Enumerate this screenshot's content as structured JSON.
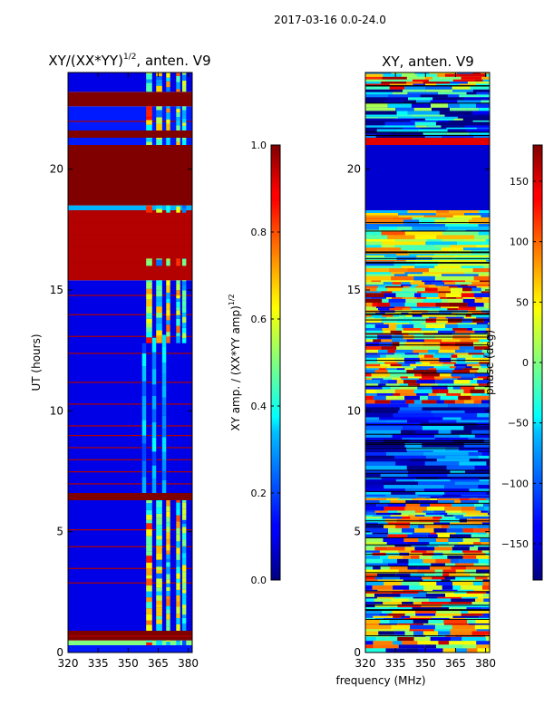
{
  "figure_title": "2017-03-16 0.0-24.0",
  "shared_xlabel": "frequency (MHz)",
  "chart_data": [
    {
      "type": "heatmap",
      "title": "XY/(XX*YY)^{1/2}, anten. V9",
      "title_main": "XY/(XX*YY)",
      "title_sup": "1/2",
      "title_tail": ", anten. V9",
      "ylabel": "UT (hours)",
      "xlim": [
        320,
        382
      ],
      "ylim": [
        0,
        24
      ],
      "xticks": [
        320,
        335,
        350,
        365,
        380
      ],
      "yticks": [
        0,
        5,
        10,
        15,
        20
      ],
      "colorbar": {
        "label_main": "XY amp. / (XX*YY amp)",
        "label_sup": "1/2",
        "range": [
          0.0,
          1.0
        ],
        "ticks": [
          "0.0",
          "0.2",
          "0.4",
          "0.6",
          "0.8",
          "1.0"
        ],
        "tick_values": [
          0.0,
          0.2,
          0.4,
          0.6,
          0.8,
          1.0
        ]
      },
      "colormap": "jet",
      "colormap_stops": [
        "#00007f",
        "#0000ff",
        "#007fff",
        "#00ffff",
        "#7fff7f",
        "#ffff00",
        "#ff7f00",
        "#ff0000",
        "#7f0000"
      ],
      "bands": [
        {
          "from": 0.0,
          "to": 0.3,
          "level": 0.15
        },
        {
          "from": 0.3,
          "to": 0.5,
          "level": 0.5
        },
        {
          "from": 0.5,
          "to": 0.9,
          "level": 1.0
        },
        {
          "from": 0.9,
          "to": 6.3,
          "level": 0.1
        },
        {
          "from": 6.3,
          "to": 6.6,
          "level": 1.0
        },
        {
          "from": 6.6,
          "to": 15.4,
          "level": 0.1
        },
        {
          "from": 15.4,
          "to": 18.3,
          "level": 0.95
        },
        {
          "from": 18.3,
          "to": 18.5,
          "level": 0.3
        },
        {
          "from": 18.5,
          "to": 21.0,
          "level": 1.0
        },
        {
          "from": 21.0,
          "to": 21.3,
          "level": 0.15
        },
        {
          "from": 21.3,
          "to": 21.6,
          "level": 1.0
        },
        {
          "from": 21.6,
          "to": 22.6,
          "level": 0.15
        },
        {
          "from": 22.6,
          "to": 23.2,
          "level": 1.0
        },
        {
          "from": 23.2,
          "to": 24.0,
          "level": 0.1
        }
      ],
      "high_columns": [
        {
          "from": 359,
          "to": 362,
          "level": 0.7
        },
        {
          "from": 364,
          "to": 367,
          "level": 0.55
        },
        {
          "from": 369,
          "to": 371,
          "level": 0.6
        },
        {
          "from": 374,
          "to": 376,
          "level": 0.65
        },
        {
          "from": 377,
          "to": 379,
          "level": 0.5
        }
      ],
      "red_lines_ut": [
        0.7,
        2.9,
        3.5,
        4.4,
        5.1,
        7.0,
        7.5,
        8.0,
        8.5,
        9.0,
        9.4,
        10.3,
        11.2,
        12.4,
        13.1,
        14.0,
        14.8,
        16.2,
        16.8,
        17.3,
        17.8,
        22.0
      ]
    },
    {
      "type": "heatmap",
      "title": "XY, anten. V9",
      "ylabel": "",
      "xlim": [
        320,
        382
      ],
      "ylim": [
        0,
        24
      ],
      "xticks": [
        320,
        335,
        350,
        365,
        380
      ],
      "yticks": [
        0,
        5,
        10,
        15,
        20
      ],
      "colorbar": {
        "label": "phase (deg)",
        "range": [
          -180,
          180
        ],
        "ticks": [
          "−150",
          "−100",
          "−50",
          "0",
          "50",
          "100",
          "150"
        ],
        "tick_values": [
          -150,
          -100,
          -50,
          0,
          50,
          100,
          150
        ]
      },
      "colormap": "jet",
      "bands": [
        {
          "from": 0.0,
          "to": 2.6,
          "level": 0.5
        },
        {
          "from": 2.6,
          "to": 6.4,
          "level": 0.45
        },
        {
          "from": 6.4,
          "to": 10.3,
          "level": 0.1
        },
        {
          "from": 10.3,
          "to": 15.4,
          "level": 0.7
        },
        {
          "from": 15.4,
          "to": 18.3,
          "level": 0.55
        },
        {
          "from": 18.3,
          "to": 21.0,
          "level": 0.08
        },
        {
          "from": 21.0,
          "to": 21.3,
          "level": 0.9
        },
        {
          "from": 21.3,
          "to": 23.3,
          "level": 0.15
        },
        {
          "from": 23.3,
          "to": 24.0,
          "level": 0.6
        }
      ]
    }
  ]
}
